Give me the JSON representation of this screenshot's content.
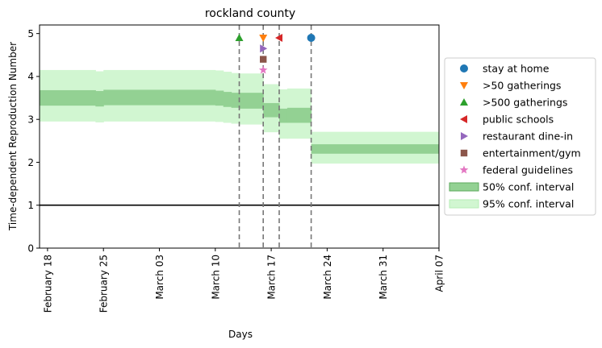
{
  "chart_data": {
    "type": "line",
    "title": "rockland county",
    "xlabel": "Days",
    "ylabel": "Time-dependent Reproduction Number",
    "x_range": [
      "2020-02-17",
      "2020-04-07"
    ],
    "ylim": [
      0,
      5.2
    ],
    "x_ticks": [
      {
        "date": "2020-02-18",
        "label": "February 18"
      },
      {
        "date": "2020-02-25",
        "label": "February 25"
      },
      {
        "date": "2020-03-03",
        "label": "March 03"
      },
      {
        "date": "2020-03-10",
        "label": "March 10"
      },
      {
        "date": "2020-03-17",
        "label": "March 17"
      },
      {
        "date": "2020-03-24",
        "label": "March 24"
      },
      {
        "date": "2020-03-31",
        "label": "March 31"
      },
      {
        "date": "2020-04-07",
        "label": "April 07"
      }
    ],
    "y_ticks": [
      0,
      1,
      2,
      3,
      4,
      5
    ],
    "reference_line_y": 1,
    "bands": [
      {
        "start": "2020-02-17",
        "end": "2020-02-24",
        "ci50": [
          3.32,
          3.68
        ],
        "ci95": [
          2.95,
          4.15
        ]
      },
      {
        "start": "2020-02-24",
        "end": "2020-02-25",
        "ci50": [
          3.3,
          3.66
        ],
        "ci95": [
          2.93,
          4.12
        ]
      },
      {
        "start": "2020-02-25",
        "end": "2020-03-10",
        "ci50": [
          3.33,
          3.69
        ],
        "ci95": [
          2.95,
          4.15
        ]
      },
      {
        "start": "2020-03-10",
        "end": "2020-03-11",
        "ci50": [
          3.32,
          3.67
        ],
        "ci95": [
          2.94,
          4.14
        ]
      },
      {
        "start": "2020-03-11",
        "end": "2020-03-12",
        "ci50": [
          3.29,
          3.64
        ],
        "ci95": [
          2.92,
          4.11
        ]
      },
      {
        "start": "2020-03-12",
        "end": "2020-03-13",
        "ci50": [
          3.27,
          3.62
        ],
        "ci95": [
          2.9,
          4.08
        ]
      },
      {
        "start": "2020-03-13",
        "end": "2020-03-16",
        "ci50": [
          3.25,
          3.62
        ],
        "ci95": [
          2.88,
          4.07
        ]
      },
      {
        "start": "2020-03-16",
        "end": "2020-03-18",
        "ci50": [
          3.05,
          3.38
        ],
        "ci95": [
          2.7,
          3.82
        ]
      },
      {
        "start": "2020-03-18",
        "end": "2020-03-19",
        "ci50": [
          2.92,
          3.25
        ],
        "ci95": [
          2.55,
          3.7
        ]
      },
      {
        "start": "2020-03-19",
        "end": "2020-03-22",
        "ci50": [
          2.92,
          3.27
        ],
        "ci95": [
          2.55,
          3.72
        ]
      },
      {
        "start": "2020-03-22",
        "end": "2020-04-07",
        "ci50": [
          2.2,
          2.42
        ],
        "ci95": [
          1.97,
          2.71
        ]
      }
    ],
    "interventions": [
      {
        "name": "stay at home",
        "date": "2020-03-22",
        "y": 4.9,
        "marker": "circle",
        "color": "#1f77b4"
      },
      {
        "name": ">50 gatherings",
        "date": "2020-03-16",
        "y": 4.9,
        "marker": "triangle-down",
        "color": "#ff7f0e"
      },
      {
        "name": ">500 gatherings",
        "date": "2020-03-13",
        "y": 4.9,
        "marker": "triangle-up",
        "color": "#2ca02c"
      },
      {
        "name": "public schools",
        "date": "2020-03-18",
        "y": 4.9,
        "marker": "triangle-left",
        "color": "#d62728"
      },
      {
        "name": "restaurant dine-in",
        "date": "2020-03-16",
        "y": 4.65,
        "marker": "triangle-right",
        "color": "#9467bd"
      },
      {
        "name": "entertainment/gym",
        "date": "2020-03-16",
        "y": 4.4,
        "marker": "square",
        "color": "#8c564b"
      },
      {
        "name": "federal guidelines",
        "date": "2020-03-16",
        "y": 4.15,
        "marker": "star",
        "color": "#e377c2"
      }
    ],
    "vlines": [
      "2020-03-13",
      "2020-03-16",
      "2020-03-18",
      "2020-03-22"
    ],
    "legend": {
      "placement": "center-right-outside",
      "entries": [
        {
          "label": "stay at home",
          "kind": "marker",
          "ref": 0
        },
        {
          "label": ">50 gatherings",
          "kind": "marker",
          "ref": 1
        },
        {
          "label": ">500 gatherings",
          "kind": "marker",
          "ref": 2
        },
        {
          "label": "public schools",
          "kind": "marker",
          "ref": 3
        },
        {
          "label": "restaurant dine-in",
          "kind": "marker",
          "ref": 4
        },
        {
          "label": "entertainment/gym",
          "kind": "marker",
          "ref": 5
        },
        {
          "label": "federal guidelines",
          "kind": "marker",
          "ref": 6
        },
        {
          "label": "50% conf. interval",
          "kind": "patch",
          "fill": "#93d193",
          "stroke": "#5eaa5e"
        },
        {
          "label": "95% conf. interval",
          "kind": "patch",
          "fill": "#d1f6d1",
          "stroke": "#b6eeb6"
        }
      ]
    },
    "colors": {
      "ci50": "#93d193",
      "ci95": "#d1f6d1",
      "vline": "#777777",
      "reference_line": "#000000"
    },
    "grid": false
  }
}
